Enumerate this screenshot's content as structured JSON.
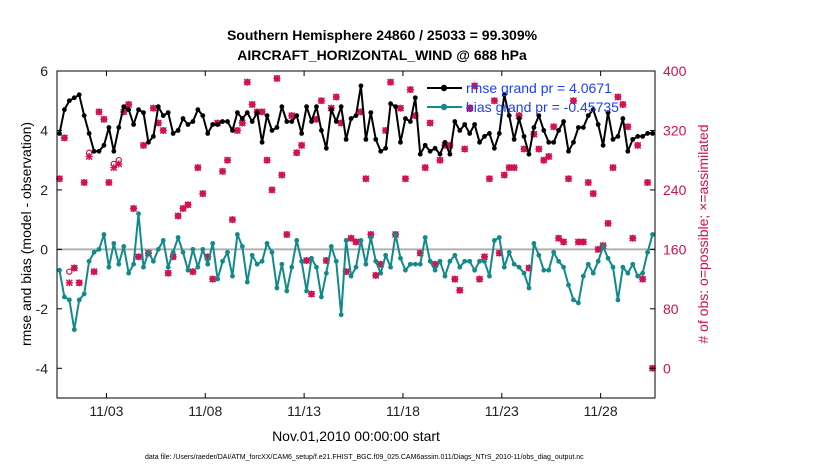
{
  "figure": {
    "title_line1": "Southern Hemisphere 24860 / 25033 = 99.309%",
    "title_line2": "AIRCRAFT_HORIZONTAL_WIND @ 688 hPa",
    "footnote": "data file: /Users/raeder/DAI/ATM_forcXX/CAM6_setup/f.e21.FHIST_BGC.f09_025.CAM6assim.011/Diags_NTrS_2010-11/obs_diag_output.nc"
  },
  "chart_data": {
    "type": "line",
    "xlabel": "Nov.01,2010 00:00:00 start",
    "ylabel": "rmse and bias (model - observation)",
    "y2label": "# of obs: o=possible; ×=assimilated",
    "xlim": [
      0.5,
      30.75
    ],
    "ylim": [
      -5,
      6
    ],
    "y2lim": [
      -40,
      400
    ],
    "x_ticks": [
      3,
      8,
      13,
      18,
      23,
      28
    ],
    "x_tick_labels": [
      "11/03",
      "11/08",
      "11/13",
      "11/18",
      "11/23",
      "11/28"
    ],
    "y_ticks": [
      -4,
      -2,
      0,
      2,
      4,
      6
    ],
    "y2_ticks": [
      0,
      80,
      160,
      240,
      320,
      400
    ],
    "zero_line": 0,
    "colors": {
      "rmse": "#000000",
      "bias": "#138a8a",
      "obs": "#d01050",
      "legend_text": "#1a3fff",
      "zero_line": "#b0b0b0"
    },
    "legend": [
      {
        "label": "rmse grand pr = 4.0671",
        "series": "rmse"
      },
      {
        "label": "bias grand pr = -0.45735",
        "series": "bias"
      }
    ],
    "series": [
      {
        "name": "rmse",
        "axis": "left",
        "x": [
          0.625,
          0.875,
          1.125,
          1.375,
          1.625,
          1.875,
          2.125,
          2.375,
          2.625,
          2.875,
          3.125,
          3.375,
          3.625,
          3.875,
          4.125,
          4.375,
          4.625,
          4.875,
          5.125,
          5.375,
          5.625,
          5.875,
          6.125,
          6.375,
          6.625,
          6.875,
          7.125,
          7.375,
          7.625,
          7.875,
          8.125,
          8.375,
          8.625,
          8.875,
          9.125,
          9.375,
          9.625,
          9.875,
          10.125,
          10.375,
          10.625,
          10.875,
          11.125,
          11.375,
          11.625,
          11.875,
          12.125,
          12.375,
          12.625,
          12.875,
          13.125,
          13.375,
          13.625,
          13.875,
          14.125,
          14.375,
          14.625,
          14.875,
          15.125,
          15.375,
          15.625,
          15.875,
          16.125,
          16.375,
          16.625,
          16.875,
          17.125,
          17.375,
          17.625,
          17.875,
          18.125,
          18.375,
          18.625,
          18.875,
          19.125,
          19.375,
          19.625,
          19.875,
          20.125,
          20.375,
          20.625,
          20.875,
          21.125,
          21.375,
          21.625,
          21.875,
          22.125,
          22.375,
          22.625,
          22.875,
          23.125,
          23.375,
          23.625,
          23.875,
          24.125,
          24.375,
          24.625,
          24.875,
          25.125,
          25.375,
          25.625,
          25.875,
          26.125,
          26.375,
          26.625,
          26.875,
          27.125,
          27.375,
          27.625,
          27.875,
          28.125,
          28.375,
          28.625,
          28.875,
          29.125,
          29.375,
          29.625,
          29.875,
          30.125,
          30.375,
          30.625
        ],
        "values": [
          3.9,
          4.7,
          5.0,
          5.1,
          5.2,
          4.5,
          3.9,
          3.3,
          3.3,
          3.5,
          4.1,
          3.3,
          4.1,
          4.8,
          4.7,
          4.2,
          4.7,
          4.6,
          3.6,
          3.8,
          4.8,
          4.5,
          4.6,
          3.9,
          4.0,
          4.4,
          4.2,
          4.3,
          4.7,
          4.5,
          3.9,
          4.2,
          4.2,
          4.3,
          4.3,
          4.0,
          4.6,
          4.4,
          4.6,
          4.3,
          4.6,
          3.6,
          4.5,
          4.0,
          4.1,
          4.8,
          4.3,
          4.3,
          4.5,
          3.9,
          4.8,
          4.3,
          4.8,
          4.0,
          3.4,
          4.7,
          4.3,
          4.8,
          3.7,
          4.4,
          4.5,
          5.5,
          3.7,
          4.6,
          3.7,
          3.3,
          3.4,
          4.9,
          4.8,
          3.6,
          4.4,
          4.3,
          5.1,
          3.2,
          3.5,
          3.3,
          3.4,
          3.2,
          3.6,
          3.2,
          4.3,
          4.0,
          4.2,
          3.9,
          4.2,
          3.6,
          3.8,
          3.9,
          3.4,
          3.9,
          5.2,
          4.5,
          3.7,
          4.4,
          3.8,
          3.2,
          4.1,
          4.5,
          4.0,
          3.6,
          3.6,
          4.0,
          4.3,
          3.3,
          3.6,
          4.1,
          4.1,
          4.5,
          4.7,
          4.2,
          3.5,
          4.6,
          3.7,
          3.8,
          4.4,
          3.3,
          3.7,
          3.8,
          3.8,
          3.9,
          3.9
        ]
      },
      {
        "name": "bias",
        "axis": "left",
        "x": [
          0.625,
          0.875,
          1.125,
          1.375,
          1.625,
          1.875,
          2.125,
          2.375,
          2.625,
          2.875,
          3.125,
          3.375,
          3.625,
          3.875,
          4.125,
          4.375,
          4.625,
          4.875,
          5.125,
          5.375,
          5.625,
          5.875,
          6.125,
          6.375,
          6.625,
          6.875,
          7.125,
          7.375,
          7.625,
          7.875,
          8.125,
          8.375,
          8.625,
          8.875,
          9.125,
          9.375,
          9.625,
          9.875,
          10.125,
          10.375,
          10.625,
          10.875,
          11.125,
          11.375,
          11.625,
          11.875,
          12.125,
          12.375,
          12.625,
          12.875,
          13.125,
          13.375,
          13.625,
          13.875,
          14.125,
          14.375,
          14.625,
          14.875,
          15.125,
          15.375,
          15.625,
          15.875,
          16.125,
          16.375,
          16.625,
          16.875,
          17.125,
          17.375,
          17.625,
          17.875,
          18.125,
          18.375,
          18.625,
          18.875,
          19.125,
          19.375,
          19.625,
          19.875,
          20.125,
          20.375,
          20.625,
          20.875,
          21.125,
          21.375,
          21.625,
          21.875,
          22.125,
          22.375,
          22.625,
          22.875,
          23.125,
          23.375,
          23.625,
          23.875,
          24.125,
          24.375,
          24.625,
          24.875,
          25.125,
          25.375,
          25.625,
          25.875,
          26.125,
          26.375,
          26.625,
          26.875,
          27.125,
          27.375,
          27.625,
          27.875,
          28.125,
          28.375,
          28.625,
          28.875,
          29.125,
          29.375,
          29.625,
          29.875,
          30.125,
          30.375,
          30.625
        ],
        "values": [
          -0.7,
          -1.6,
          -1.7,
          -2.7,
          -1.7,
          -1.5,
          -0.4,
          -0.1,
          0.0,
          0.5,
          -0.6,
          0.2,
          -0.5,
          0.1,
          -0.8,
          -0.5,
          1.2,
          -0.6,
          -0.1,
          -0.4,
          0.0,
          0.3,
          -0.6,
          -0.1,
          0.4,
          -0.1,
          -0.7,
          0.0,
          -0.6,
          0.0,
          -0.5,
          0.2,
          -1.0,
          -0.4,
          -0.1,
          -0.9,
          0.5,
          0.1,
          -1.1,
          -0.2,
          -0.5,
          -0.4,
          0.2,
          -0.1,
          -1.3,
          -0.5,
          -1.4,
          -0.6,
          0.3,
          -0.4,
          -1.4,
          -0.3,
          -0.6,
          -1.6,
          -0.8,
          0.1,
          -0.4,
          -2.2,
          0.3,
          -0.9,
          -0.6,
          0.3,
          -0.5,
          0.4,
          -0.4,
          -0.8,
          -0.2,
          -0.6,
          0.5,
          -0.3,
          -0.7,
          -0.5,
          -0.5,
          -0.5,
          0.4,
          -0.4,
          -0.7,
          -0.4,
          -0.9,
          -0.4,
          -0.2,
          -0.6,
          -0.4,
          -0.4,
          -0.7,
          -0.4,
          -0.4,
          -0.9,
          0.3,
          0.4,
          -0.6,
          -0.1,
          -0.5,
          -0.6,
          -0.8,
          -1.3,
          0.2,
          -0.2,
          -0.7,
          -0.7,
          -0.1,
          -0.4,
          -0.6,
          -1.2,
          -1.7,
          -1.8,
          -0.9,
          -0.5,
          -0.8,
          -0.4,
          0.1,
          -0.3,
          -0.6,
          -1.7,
          -0.6,
          -0.8,
          -0.5,
          -0.9,
          -0.8,
          -0.1,
          0.5
        ]
      },
      {
        "name": "obs_possible",
        "axis": "right",
        "marker": "o",
        "x": [
          0.625,
          0.875,
          1.125,
          1.375,
          1.625,
          1.875,
          2.125,
          2.375,
          2.625,
          2.875,
          3.125,
          3.375,
          3.625,
          3.875,
          4.125,
          4.375,
          4.625,
          4.875,
          5.125,
          5.375,
          5.625,
          5.875,
          6.125,
          6.375,
          6.625,
          6.875,
          7.125,
          7.375,
          7.625,
          7.875,
          8.125,
          8.375,
          8.625,
          8.875,
          9.125,
          9.375,
          9.625,
          9.875,
          10.125,
          10.375,
          10.625,
          10.875,
          11.125,
          11.375,
          11.625,
          11.875,
          12.125,
          12.375,
          12.625,
          12.875,
          13.125,
          13.375,
          13.625,
          13.875,
          14.125,
          14.375,
          14.625,
          14.875,
          15.125,
          15.375,
          15.625,
          15.875,
          16.125,
          16.375,
          16.625,
          16.875,
          17.125,
          17.375,
          17.625,
          17.875,
          18.125,
          18.375,
          18.625,
          18.875,
          19.125,
          19.375,
          19.625,
          19.875,
          20.125,
          20.375,
          20.625,
          20.875,
          21.125,
          21.375,
          21.625,
          21.875,
          22.125,
          22.375,
          22.625,
          22.875,
          23.125,
          23.375,
          23.625,
          23.875,
          24.125,
          24.375,
          24.625,
          24.875,
          25.125,
          25.375,
          25.625,
          25.875,
          26.125,
          26.375,
          26.625,
          26.875,
          27.125,
          27.375,
          27.625,
          27.875,
          28.125,
          28.375,
          28.625,
          28.875,
          29.125,
          29.375,
          29.625,
          29.875,
          30.125,
          30.375,
          30.625
        ],
        "values": [
          255,
          310,
          130,
          135,
          115,
          250,
          290,
          130,
          345,
          335,
          250,
          275,
          280,
          345,
          355,
          215,
          150,
          300,
          155,
          350,
          330,
          320,
          128,
          150,
          205,
          215,
          220,
          130,
          270,
          235,
          150,
          120,
          330,
          265,
          280,
          200,
          320,
          330,
          385,
          355,
          345,
          345,
          280,
          240,
          390,
          260,
          180,
          340,
          290,
          300,
          145,
          100,
          335,
          360,
          145,
          350,
          365,
          330,
          130,
          175,
          170,
          345,
          255,
          180,
          125,
          140,
          320,
          385,
          180,
          350,
          255,
          375,
          340,
          155,
          270,
          330,
          140,
          280,
          300,
          300,
          120,
          105,
          295,
          350,
          380,
          120,
          150,
          255,
          360,
          155,
          260,
          270,
          270,
          340,
          295,
          135,
          315,
          295,
          280,
          285,
          325,
          175,
          170,
          255,
          360,
          170,
          170,
          250,
          235,
          160,
          165,
          195,
          270,
          365,
          355,
          325,
          175,
          300,
          120,
          250,
          0
        ]
      },
      {
        "name": "obs_assimilated",
        "axis": "right",
        "marker": "x",
        "x": [
          0.625,
          0.875,
          1.125,
          1.375,
          1.625,
          1.875,
          2.125,
          2.375,
          2.625,
          2.875,
          3.125,
          3.375,
          3.625,
          3.875,
          4.125,
          4.375,
          4.625,
          4.875,
          5.125,
          5.375,
          5.625,
          5.875,
          6.125,
          6.375,
          6.625,
          6.875,
          7.125,
          7.375,
          7.625,
          7.875,
          8.125,
          8.375,
          8.625,
          8.875,
          9.125,
          9.375,
          9.625,
          9.875,
          10.125,
          10.375,
          10.625,
          10.875,
          11.125,
          11.375,
          11.625,
          11.875,
          12.125,
          12.375,
          12.625,
          12.875,
          13.125,
          13.375,
          13.625,
          13.875,
          14.125,
          14.375,
          14.625,
          14.875,
          15.125,
          15.375,
          15.625,
          15.875,
          16.125,
          16.375,
          16.625,
          16.875,
          17.125,
          17.375,
          17.625,
          17.875,
          18.125,
          18.375,
          18.625,
          18.875,
          19.125,
          19.375,
          19.625,
          19.875,
          20.125,
          20.375,
          20.625,
          20.875,
          21.125,
          21.375,
          21.625,
          21.875,
          22.125,
          22.375,
          22.625,
          22.875,
          23.125,
          23.375,
          23.625,
          23.875,
          24.125,
          24.375,
          24.625,
          24.875,
          25.125,
          25.375,
          25.625,
          25.875,
          26.125,
          26.375,
          26.625,
          26.875,
          27.125,
          27.375,
          27.625,
          27.875,
          28.125,
          28.375,
          28.625,
          28.875,
          29.125,
          29.375,
          29.625,
          29.875,
          30.125,
          30.375,
          30.625
        ],
        "values": [
          255,
          310,
          115,
          135,
          115,
          250,
          285,
          130,
          345,
          335,
          250,
          270,
          275,
          345,
          355,
          215,
          150,
          300,
          155,
          350,
          330,
          320,
          128,
          150,
          205,
          215,
          220,
          130,
          270,
          235,
          150,
          120,
          330,
          265,
          280,
          200,
          320,
          330,
          385,
          355,
          345,
          345,
          280,
          240,
          390,
          260,
          180,
          340,
          290,
          300,
          145,
          100,
          335,
          360,
          145,
          350,
          365,
          330,
          130,
          175,
          170,
          345,
          255,
          180,
          125,
          140,
          320,
          385,
          180,
          350,
          255,
          375,
          340,
          155,
          270,
          330,
          140,
          280,
          300,
          300,
          120,
          105,
          295,
          350,
          380,
          120,
          150,
          255,
          360,
          155,
          260,
          270,
          270,
          340,
          295,
          135,
          315,
          295,
          280,
          285,
          325,
          175,
          170,
          255,
          360,
          170,
          170,
          250,
          235,
          160,
          165,
          195,
          270,
          365,
          355,
          325,
          175,
          300,
          120,
          250,
          0
        ]
      }
    ]
  }
}
